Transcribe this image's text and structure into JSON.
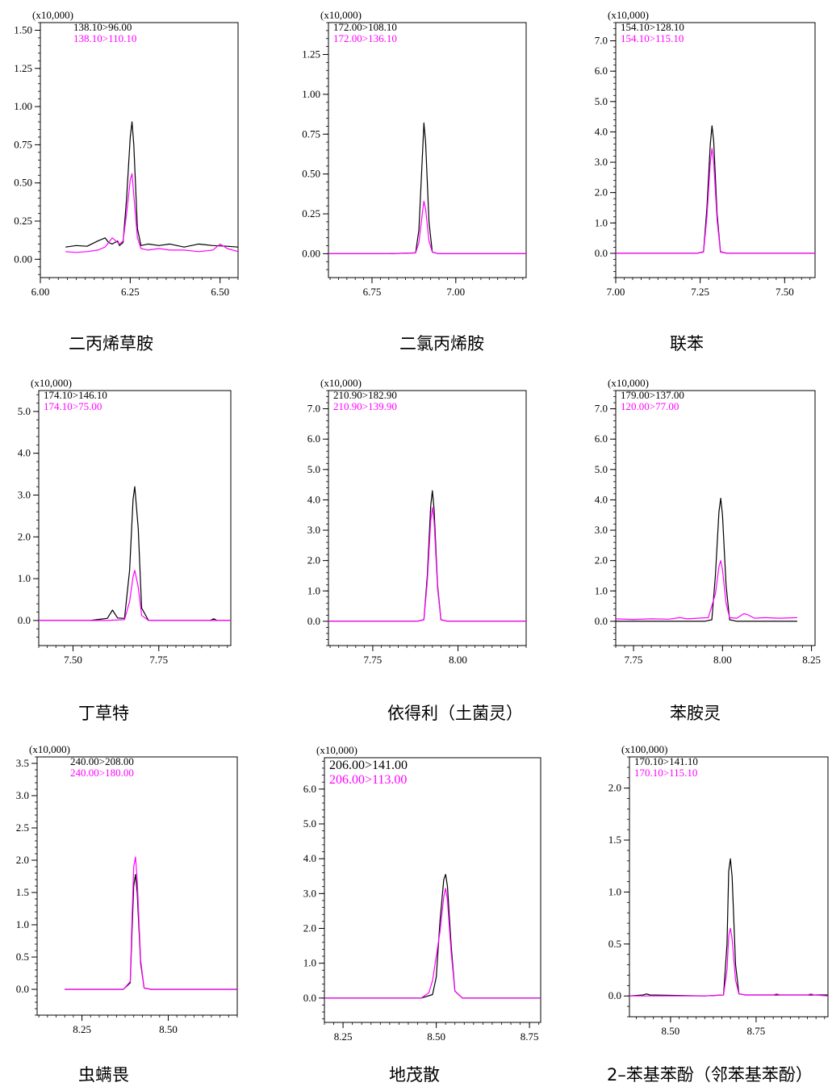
{
  "colors": {
    "series_a": "#000000",
    "series_b": "#ff00ff",
    "axis": "#000000"
  },
  "chart_data": [
    {
      "type": "line",
      "title": "二丙烯草胺",
      "y_scale_label": "(x10,000)",
      "xlim": [
        6.0,
        6.55
      ],
      "ylim": [
        -0.12,
        1.55
      ],
      "xticks": [
        6.0,
        6.25,
        6.5
      ],
      "xtick_labels": [
        "6.00",
        "6.25",
        "6.50"
      ],
      "yticks": [
        0.0,
        0.25,
        0.5,
        0.75,
        1.0,
        1.25,
        1.5
      ],
      "ytick_labels": [
        "0.00",
        "0.25",
        "0.50",
        "0.75",
        "1.00",
        "1.25",
        "1.50"
      ],
      "series": [
        {
          "name": "138.10>96.00",
          "color": "#000000",
          "x": [
            6.07,
            6.1,
            6.13,
            6.16,
            6.18,
            6.19,
            6.2,
            6.215,
            6.22,
            6.23,
            6.24,
            6.25,
            6.255,
            6.26,
            6.27,
            6.28,
            6.3,
            6.33,
            6.36,
            6.4,
            6.44,
            6.48,
            6.52,
            6.55
          ],
          "y": [
            0.08,
            0.09,
            0.085,
            0.12,
            0.14,
            0.11,
            0.1,
            0.12,
            0.09,
            0.11,
            0.4,
            0.8,
            0.9,
            0.75,
            0.2,
            0.09,
            0.1,
            0.09,
            0.1,
            0.08,
            0.1,
            0.09,
            0.085,
            0.08
          ]
        },
        {
          "name": "138.10>110.10",
          "color": "#ff00ff",
          "x": [
            6.07,
            6.1,
            6.13,
            6.16,
            6.18,
            6.2,
            6.21,
            6.22,
            6.23,
            6.24,
            6.25,
            6.255,
            6.26,
            6.27,
            6.28,
            6.3,
            6.33,
            6.36,
            6.4,
            6.44,
            6.48,
            6.5,
            6.52,
            6.55
          ],
          "y": [
            0.05,
            0.045,
            0.05,
            0.06,
            0.08,
            0.14,
            0.12,
            0.1,
            0.12,
            0.3,
            0.52,
            0.56,
            0.42,
            0.14,
            0.07,
            0.06,
            0.07,
            0.06,
            0.06,
            0.05,
            0.06,
            0.1,
            0.07,
            0.05
          ]
        }
      ]
    },
    {
      "type": "line",
      "title": "二氯丙烯胺",
      "y_scale_label": "(x10,000)",
      "xlim": [
        6.62,
        7.21
      ],
      "ylim": [
        -0.15,
        1.45
      ],
      "xticks": [
        6.75,
        7.0
      ],
      "xtick_labels": [
        "6.75",
        "7.00"
      ],
      "yticks": [
        0.0,
        0.25,
        0.5,
        0.75,
        1.0,
        1.25
      ],
      "ytick_labels": [
        "0.00",
        "0.25",
        "0.50",
        "0.75",
        "1.00",
        "1.25"
      ],
      "series": [
        {
          "name": "172.00>108.10",
          "color": "#000000",
          "x": [
            6.62,
            6.8,
            6.88,
            6.89,
            6.9,
            6.905,
            6.91,
            6.92,
            6.93,
            6.95,
            7.21
          ],
          "y": [
            0,
            0,
            0.005,
            0.15,
            0.6,
            0.82,
            0.7,
            0.2,
            0.01,
            0,
            0
          ]
        },
        {
          "name": "172.00>136.10",
          "color": "#ff00ff",
          "x": [
            6.62,
            6.8,
            6.88,
            6.89,
            6.9,
            6.905,
            6.91,
            6.92,
            6.93,
            6.95,
            7.21
          ],
          "y": [
            0,
            0,
            0.005,
            0.07,
            0.25,
            0.33,
            0.28,
            0.08,
            0.01,
            0,
            0
          ]
        }
      ]
    },
    {
      "type": "line",
      "title": "联苯",
      "y_scale_label": "(x10,000)",
      "xlim": [
        7.0,
        7.59
      ],
      "ylim": [
        -0.8,
        7.6
      ],
      "xticks": [
        7.0,
        7.25,
        7.5
      ],
      "xtick_labels": [
        "7.00",
        "7.25",
        "7.50"
      ],
      "yticks": [
        0,
        1,
        2,
        3,
        4,
        5,
        6,
        7
      ],
      "ytick_labels": [
        "0.0",
        "1.0",
        "2.0",
        "3.0",
        "4.0",
        "5.0",
        "6.0",
        "7.0"
      ],
      "series": [
        {
          "name": "154.10>128.10",
          "color": "#000000",
          "x": [
            7.0,
            7.24,
            7.26,
            7.27,
            7.28,
            7.285,
            7.29,
            7.3,
            7.31,
            7.33,
            7.59
          ],
          "y": [
            0,
            0,
            0.05,
            1.5,
            3.6,
            4.2,
            3.7,
            1.3,
            0.05,
            0,
            0
          ]
        },
        {
          "name": "154.10>115.10",
          "color": "#ff00ff",
          "x": [
            7.0,
            7.24,
            7.26,
            7.27,
            7.28,
            7.285,
            7.29,
            7.3,
            7.31,
            7.33,
            7.59
          ],
          "y": [
            0,
            0,
            0.04,
            1.2,
            3.0,
            3.45,
            3.0,
            1.1,
            0.04,
            0,
            0
          ]
        }
      ]
    },
    {
      "type": "line",
      "title": "丁草特",
      "y_scale_label": "(x10,000)",
      "xlim": [
        7.4,
        7.96
      ],
      "ylim": [
        -0.6,
        5.5
      ],
      "xticks": [
        7.5,
        7.75
      ],
      "xtick_labels": [
        "7.50",
        "7.75"
      ],
      "yticks": [
        0,
        1,
        2,
        3,
        4,
        5
      ],
      "ytick_labels": [
        "0.0",
        "1.0",
        "2.0",
        "3.0",
        "4.0",
        "5.0"
      ],
      "series": [
        {
          "name": "174.10>146.10",
          "color": "#000000",
          "x": [
            7.4,
            7.55,
            7.6,
            7.615,
            7.63,
            7.65,
            7.665,
            7.675,
            7.68,
            7.69,
            7.7,
            7.72,
            7.9,
            7.91,
            7.92,
            7.96
          ],
          "y": [
            0,
            0,
            0.05,
            0.25,
            0.06,
            0.05,
            1.2,
            2.9,
            3.2,
            2.2,
            0.3,
            0,
            0,
            0.04,
            0,
            0
          ]
        },
        {
          "name": "174.10>75.00",
          "color": "#ff00ff",
          "x": [
            7.4,
            7.6,
            7.65,
            7.665,
            7.675,
            7.68,
            7.69,
            7.7,
            7.72,
            7.96
          ],
          "y": [
            0,
            0,
            0.02,
            0.45,
            1.05,
            1.2,
            0.8,
            0.12,
            0,
            0
          ]
        }
      ]
    },
    {
      "type": "line",
      "title": "依得利（土菌灵）",
      "y_scale_label": "(x10,000)",
      "xlim": [
        7.62,
        8.2
      ],
      "ylim": [
        -0.8,
        7.6
      ],
      "xticks": [
        7.75,
        8.0
      ],
      "xtick_labels": [
        "7.75",
        "8.00"
      ],
      "yticks": [
        0,
        1,
        2,
        3,
        4,
        5,
        6,
        7
      ],
      "ytick_labels": [
        "0.0",
        "1.0",
        "2.0",
        "3.0",
        "4.0",
        "5.0",
        "6.0",
        "7.0"
      ],
      "series": [
        {
          "name": "210.90>182.90",
          "color": "#000000",
          "x": [
            7.62,
            7.88,
            7.9,
            7.91,
            7.92,
            7.925,
            7.93,
            7.94,
            7.95,
            7.97,
            8.2
          ],
          "y": [
            0,
            0,
            0.05,
            1.5,
            3.8,
            4.3,
            3.7,
            1.2,
            0.05,
            0,
            0
          ]
        },
        {
          "name": "210.90>139.90",
          "color": "#ff00ff",
          "x": [
            7.62,
            7.88,
            7.9,
            7.91,
            7.92,
            7.925,
            7.93,
            7.94,
            7.95,
            7.97,
            8.2
          ],
          "y": [
            0,
            0,
            0.05,
            1.3,
            3.3,
            3.75,
            3.3,
            1.1,
            0.05,
            0,
            0
          ]
        }
      ]
    },
    {
      "type": "line",
      "title": "苯胺灵",
      "y_scale_label": "(x10,000)",
      "xlim": [
        7.7,
        8.26
      ],
      "ylim": [
        -0.8,
        7.6
      ],
      "xticks": [
        7.75,
        8.0,
        8.25
      ],
      "xtick_labels": [
        "7.75",
        "8.00",
        "8.25"
      ],
      "yticks": [
        0,
        1,
        2,
        3,
        4,
        5,
        6,
        7
      ],
      "ytick_labels": [
        "0.0",
        "1.0",
        "2.0",
        "3.0",
        "4.0",
        "5.0",
        "6.0",
        "7.0"
      ],
      "series": [
        {
          "name": "179.00>137.00",
          "color": "#000000",
          "x": [
            7.7,
            7.95,
            7.97,
            7.98,
            7.99,
            7.995,
            8.0,
            8.01,
            8.02,
            8.04,
            8.21
          ],
          "y": [
            0,
            0,
            0.05,
            1.5,
            3.6,
            4.05,
            3.5,
            1.2,
            0.05,
            0,
            0
          ]
        },
        {
          "name": "120.00>77.00",
          "color": "#ff00ff",
          "x": [
            7.7,
            7.75,
            7.8,
            7.85,
            7.88,
            7.9,
            7.93,
            7.96,
            7.98,
            7.99,
            7.995,
            8.0,
            8.01,
            8.02,
            8.04,
            8.06,
            8.07,
            8.09,
            8.12,
            8.16,
            8.21
          ],
          "y": [
            0.08,
            0.06,
            0.08,
            0.07,
            0.12,
            0.08,
            0.1,
            0.12,
            0.9,
            1.8,
            2.0,
            1.7,
            0.6,
            0.12,
            0.1,
            0.25,
            0.22,
            0.1,
            0.12,
            0.1,
            0.12
          ]
        }
      ]
    },
    {
      "type": "line",
      "title": "虫螨畏",
      "y_scale_label": "(x10,000)",
      "xlim": [
        8.12,
        8.7
      ],
      "ylim": [
        -0.4,
        3.6
      ],
      "xticks": [
        8.25,
        8.5
      ],
      "xtick_labels": [
        "8.25",
        "8.50"
      ],
      "yticks": [
        0,
        0.5,
        1,
        1.5,
        2,
        2.5,
        3,
        3.5
      ],
      "ytick_labels": [
        "0.0",
        "0.5",
        "1.0",
        "1.5",
        "2.0",
        "2.5",
        "3.0",
        "3.5"
      ],
      "series": [
        {
          "name": "240.00>208.00",
          "color": "#000000",
          "x": [
            8.2,
            8.37,
            8.39,
            8.395,
            8.4,
            8.405,
            8.41,
            8.42,
            8.43,
            8.45,
            8.7
          ],
          "y": [
            0,
            0,
            0.1,
            0.9,
            1.6,
            1.78,
            1.5,
            0.4,
            0.02,
            0,
            0
          ]
        },
        {
          "name": "240.00>180.00",
          "color": "#ff00ff",
          "x": [
            8.2,
            8.37,
            8.39,
            8.395,
            8.4,
            8.405,
            8.41,
            8.42,
            8.43,
            8.45,
            8.7
          ],
          "y": [
            0,
            0,
            0.12,
            1.1,
            1.9,
            2.05,
            1.7,
            0.45,
            0.02,
            0,
            0
          ]
        }
      ]
    },
    {
      "type": "line",
      "title": "地茂散",
      "y_scale_label": "(x10,000)",
      "xlim": [
        8.2,
        8.78
      ],
      "ylim": [
        -0.7,
        6.9
      ],
      "xticks": [
        8.25,
        8.5,
        8.75
      ],
      "xtick_labels": [
        "8.25",
        "8.50",
        "8.75"
      ],
      "yticks": [
        0,
        1,
        2,
        3,
        4,
        5,
        6
      ],
      "ytick_labels": [
        "0.0",
        "1.0",
        "2.0",
        "3.0",
        "4.0",
        "5.0",
        "6.0"
      ],
      "series": [
        {
          "name": "206.00>141.00",
          "color": "#000000",
          "x": [
            8.2,
            8.46,
            8.49,
            8.5,
            8.51,
            8.52,
            8.525,
            8.53,
            8.54,
            8.55,
            8.57,
            8.78
          ],
          "y": [
            0,
            0,
            0.1,
            0.6,
            2.2,
            3.4,
            3.55,
            3.2,
            1.5,
            0.2,
            0,
            0
          ]
        },
        {
          "name": "206.00>113.00",
          "color": "#ff00ff",
          "x": [
            8.2,
            8.46,
            8.48,
            8.49,
            8.5,
            8.51,
            8.52,
            8.525,
            8.53,
            8.54,
            8.55,
            8.57,
            8.78
          ],
          "y": [
            0,
            0,
            0.15,
            0.5,
            1.2,
            1.9,
            2.9,
            3.15,
            2.8,
            1.3,
            0.2,
            0,
            0
          ]
        }
      ]
    },
    {
      "type": "line",
      "title": "2–苯基苯酚（邻苯基苯酚）",
      "y_scale_label": "(x100,000)",
      "xlim": [
        8.38,
        8.96
      ],
      "ylim": [
        -0.2,
        2.3
      ],
      "xticks": [
        8.5,
        8.75
      ],
      "xtick_labels": [
        "8.50",
        "8.75"
      ],
      "yticks": [
        0,
        0.5,
        1,
        1.5,
        2
      ],
      "ytick_labels": [
        "0.0",
        "0.5",
        "1.0",
        "1.5",
        "2.0"
      ],
      "series": [
        {
          "name": "170.10>141.10",
          "color": "#000000",
          "x": [
            8.38,
            8.42,
            8.43,
            8.44,
            8.6,
            8.655,
            8.665,
            8.67,
            8.675,
            8.68,
            8.69,
            8.7,
            8.72,
            8.96
          ],
          "y": [
            0,
            0.01,
            0.02,
            0.01,
            0,
            0.01,
            0.5,
            1.2,
            1.32,
            1.15,
            0.3,
            0.02,
            0.01,
            0.01
          ]
        },
        {
          "name": "170.10>115.10",
          "color": "#ff00ff",
          "x": [
            8.38,
            8.6,
            8.655,
            8.665,
            8.67,
            8.675,
            8.68,
            8.69,
            8.7,
            8.72,
            8.8,
            8.81,
            8.82,
            8.9,
            8.91,
            8.92,
            8.96
          ],
          "y": [
            0,
            0,
            0.01,
            0.25,
            0.58,
            0.65,
            0.55,
            0.15,
            0.02,
            0.01,
            0.01,
            0.02,
            0.01,
            0.01,
            0.02,
            0.01,
            0
          ]
        }
      ]
    }
  ]
}
